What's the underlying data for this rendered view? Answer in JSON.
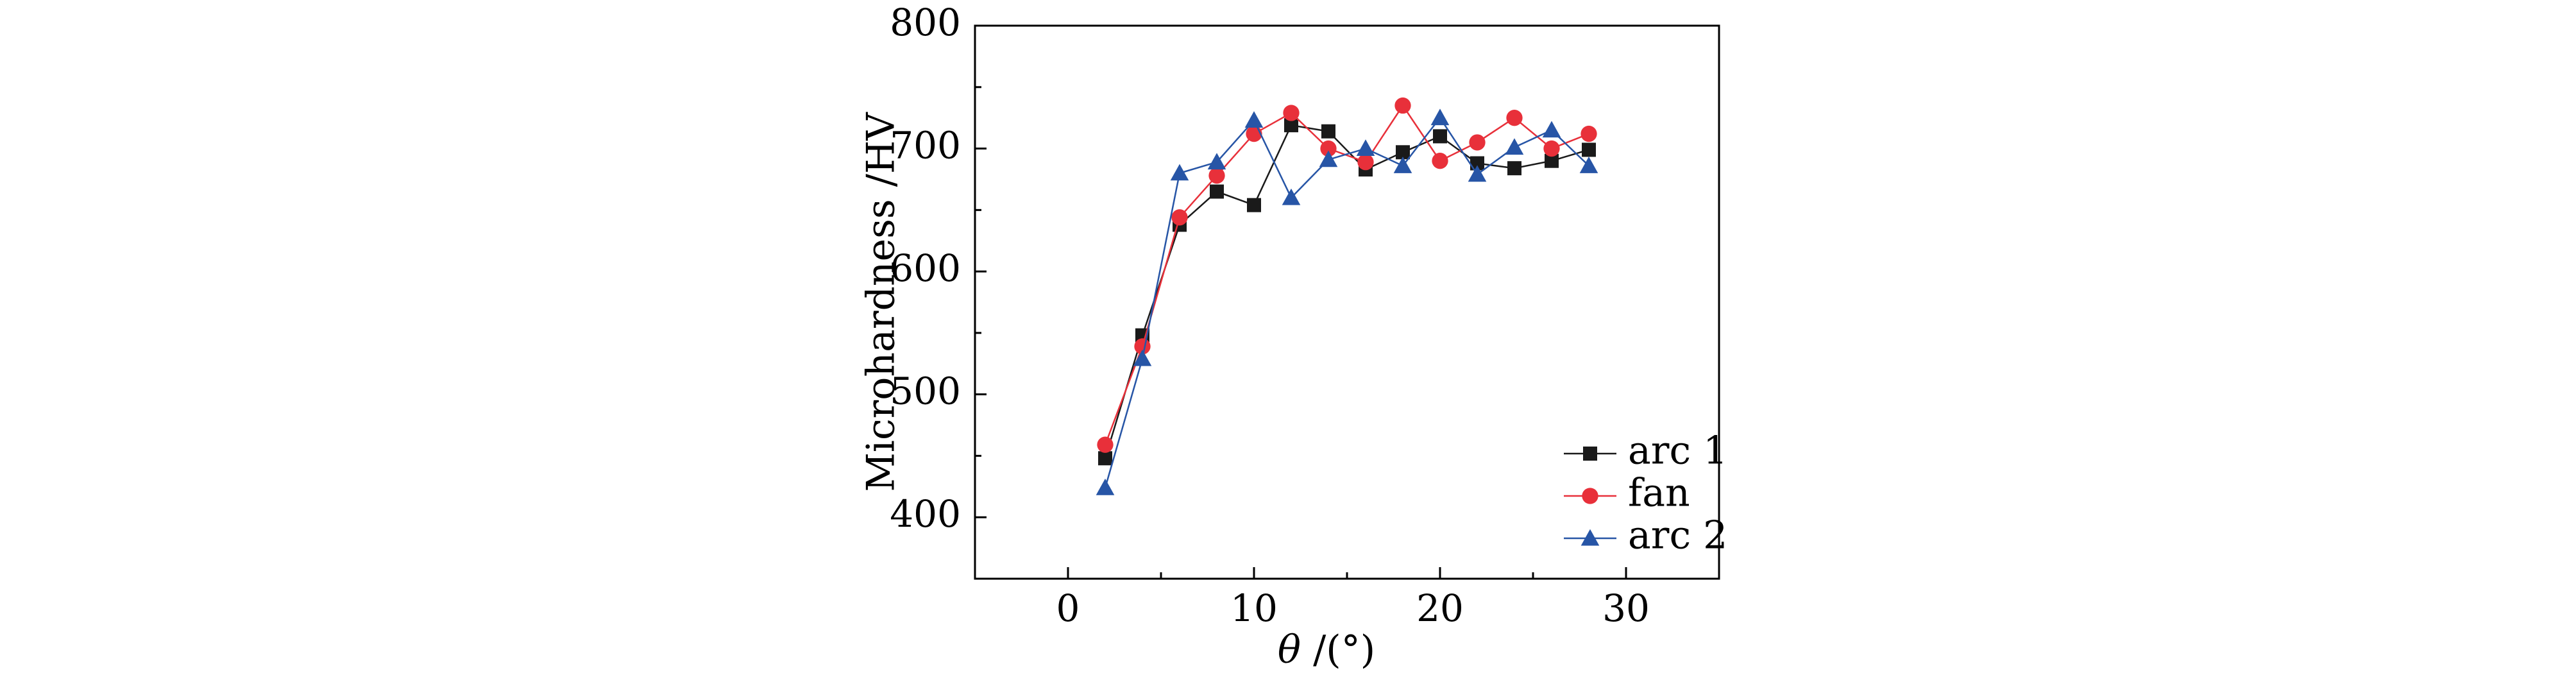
{
  "chart_data": {
    "type": "line",
    "title": "",
    "xlabel_symbol": "θ",
    "xlabel_unit": " /(°)",
    "ylabel": "Microhardness /HV",
    "xlim": [
      -5,
      35
    ],
    "ylim": [
      350,
      800
    ],
    "x_ticks": [
      0,
      10,
      20,
      30
    ],
    "x_tick_labels": [
      "0",
      "10",
      "20",
      "30"
    ],
    "y_ticks": [
      400,
      500,
      600,
      700,
      800
    ],
    "y_tick_labels": [
      "400",
      "500",
      "600",
      "700",
      "800"
    ],
    "grid": false,
    "legend_position": "bottom-right",
    "x": [
      2,
      4,
      6,
      8,
      10,
      12,
      14,
      16,
      18,
      20,
      22,
      24,
      26,
      28
    ],
    "series": [
      {
        "name": "arc 1",
        "marker": "square",
        "color": "#1a1a1a",
        "values": [
          448,
          548,
          638,
          665,
          654,
          719,
          714,
          683,
          697,
          710,
          688,
          684,
          690,
          699
        ]
      },
      {
        "name": "fan",
        "marker": "circle",
        "color": "#e8303a",
        "values": [
          459,
          539,
          644,
          678,
          712,
          729,
          700,
          689,
          735,
          690,
          705,
          725,
          700,
          712
        ]
      },
      {
        "name": "arc 2",
        "marker": "triangle",
        "color": "#2755a6",
        "values": [
          424,
          529,
          680,
          689,
          723,
          660,
          691,
          700,
          686,
          725,
          679,
          701,
          715,
          686
        ]
      }
    ]
  }
}
